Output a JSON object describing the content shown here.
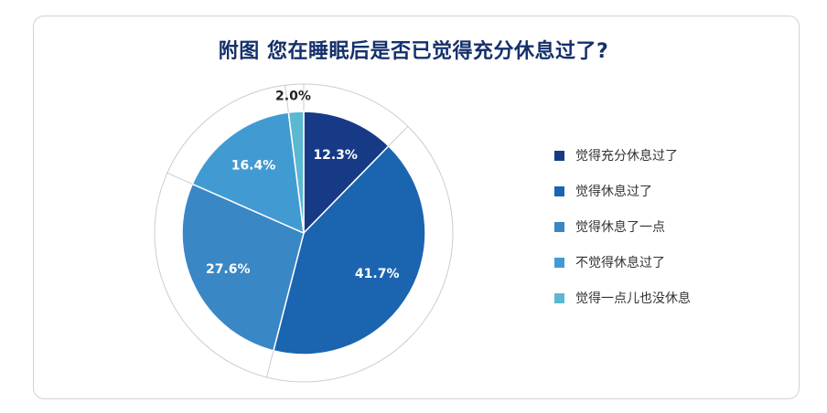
{
  "chart_data": {
    "type": "pie",
    "title": "附图 您在睡眠后是否已觉得充分休息过了?",
    "categories": [
      "觉得充分休息过了",
      "觉得休息过了",
      "觉得休息了一点",
      "不觉得休息过了",
      "觉得一点儿也没休息"
    ],
    "values": [
      12.3,
      41.7,
      27.6,
      16.4,
      2.0
    ],
    "value_labels": [
      "12.3%",
      "41.7%",
      "27.6%",
      "16.4%",
      "2.0%"
    ],
    "colors": [
      "#163a86",
      "#1b64b0",
      "#3a87c6",
      "#419bd2",
      "#5bb8d0"
    ],
    "legend_position": "right",
    "start_angle": "12 o'clock, clockwise"
  }
}
